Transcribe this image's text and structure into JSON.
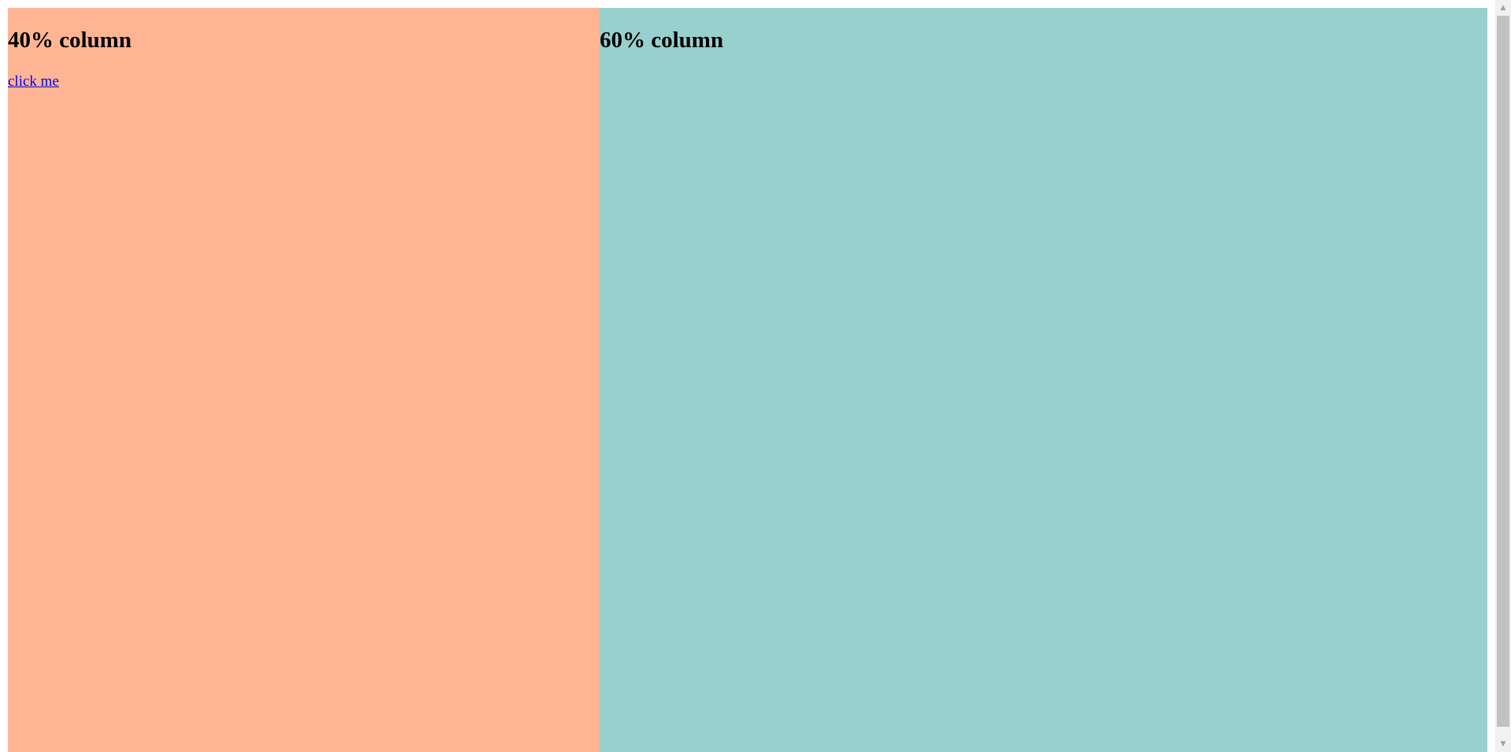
{
  "columns": {
    "left": {
      "heading": "40% column",
      "link_text": "click me",
      "background": "#ffb593"
    },
    "right": {
      "heading": "60% column",
      "background": "#97d0cd"
    }
  },
  "colors": {
    "link": "#0000ee",
    "scrollbar_track": "#f1f1f1",
    "scrollbar_thumb": "#c1c1c1"
  },
  "scrollbar": {
    "up_icon": "triangle-up-icon",
    "down_icon": "triangle-down-icon"
  }
}
